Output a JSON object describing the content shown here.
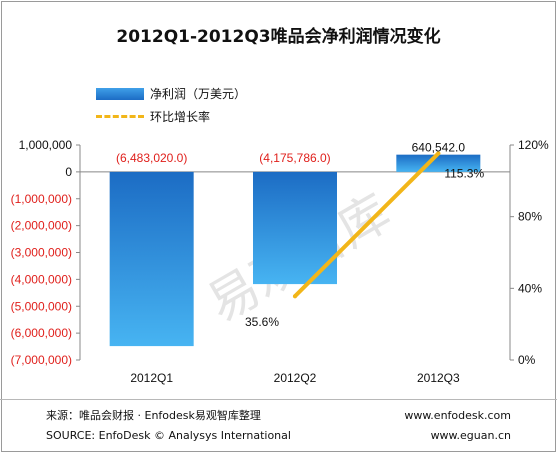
{
  "chart_data": {
    "type": "bar",
    "title": "2012Q1-2012Q3唯品会净利润情况变化",
    "categories": [
      "2012Q1",
      "2012Q2",
      "2012Q3"
    ],
    "series": [
      {
        "name": "净利润（万美元）",
        "type": "bar",
        "axis": "left",
        "values": [
          -6483020.0,
          -4175786.0,
          640542.0
        ],
        "labels": [
          "(6,483,020.0)",
          "(4,175,786.0)",
          "640,542.0"
        ],
        "color": "#2a86d8"
      },
      {
        "name": "环比增长率",
        "type": "line",
        "axis": "right",
        "values": [
          null,
          35.6,
          115.3
        ],
        "labels": [
          "",
          "35.6%",
          "115.3%"
        ],
        "color": "#f2b619"
      }
    ],
    "y_left": {
      "ylim": [
        -7000000,
        1000000
      ],
      "ticks": [
        1000000,
        0,
        -1000000,
        -2000000,
        -3000000,
        -4000000,
        -5000000,
        -6000000,
        -7000000
      ],
      "tick_labels": [
        "1,000,000",
        "0",
        "(1,000,000)",
        "(2,000,000)",
        "(3,000,000)",
        "(4,000,000)",
        "(5,000,000)",
        "(6,000,000)",
        "(7,000,000)"
      ],
      "negative_color": "#e0201c"
    },
    "y_right": {
      "ylim": [
        0,
        120
      ],
      "ticks": [
        0,
        40,
        80,
        120
      ],
      "tick_labels": [
        "0%",
        "40%",
        "80%",
        "120%"
      ]
    },
    "grid": false,
    "legend_position": "top-left"
  },
  "watermark": "易观智库",
  "footer": {
    "source_cn": "来源：唯品会财报 · Enfodesk易观智库整理",
    "source_en": "SOURCE:  EnfoDesk © Analysys International",
    "url1": "www.enfodesk.com",
    "url2": "www.eguan.cn"
  }
}
